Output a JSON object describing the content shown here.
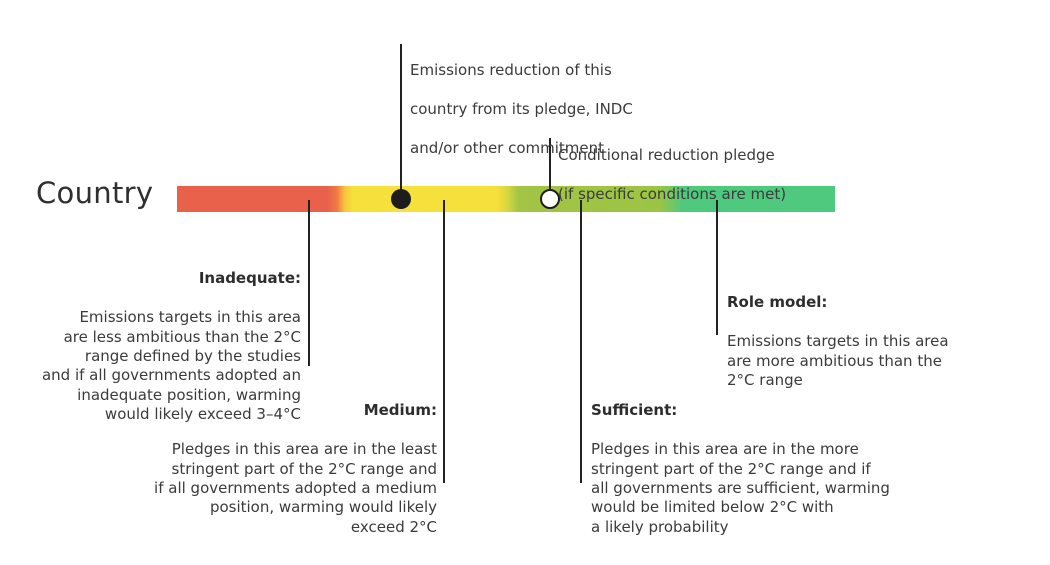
{
  "subject_label": "Country",
  "markers": {
    "pledge": {
      "line1": "Emissions reduction of this",
      "line2": "country from its pledge, INDC",
      "line3": "and/or other commitment"
    },
    "conditional": {
      "line1": "Conditional reduction pledge",
      "line2": "(if specific conditions are met)"
    }
  },
  "categories": {
    "inadequate": {
      "title": "Inadequate:",
      "description": "Emissions targets in this area\nare less ambitious than the 2°C\nrange defined by the studies\nand if all governments adopted an\ninadequate position, warming\nwould likely exceed 3–4°C"
    },
    "medium": {
      "title": "Medium:",
      "description": "Pledges in this area are in the least\nstringent part of the 2°C range and\nif all governments adopted a medium\nposition, warming would likely\nexceed 2°C"
    },
    "sufficient": {
      "title": "Sufficient:",
      "description": "Pledges in this area are in the more\nstringent part of the 2°C range and if\nall governments are sufficient, warming\nwould be limited below 2°C with\na likely probability"
    },
    "role_model": {
      "title": "Role model:",
      "description": "Emissions targets in this area\nare more ambitious than the\n2°C range"
    }
  },
  "colors": {
    "inadequate": "#e9614b",
    "medium": "#f6e03b",
    "sufficient": "#9cc444",
    "role_model": "#4fc97e"
  }
}
